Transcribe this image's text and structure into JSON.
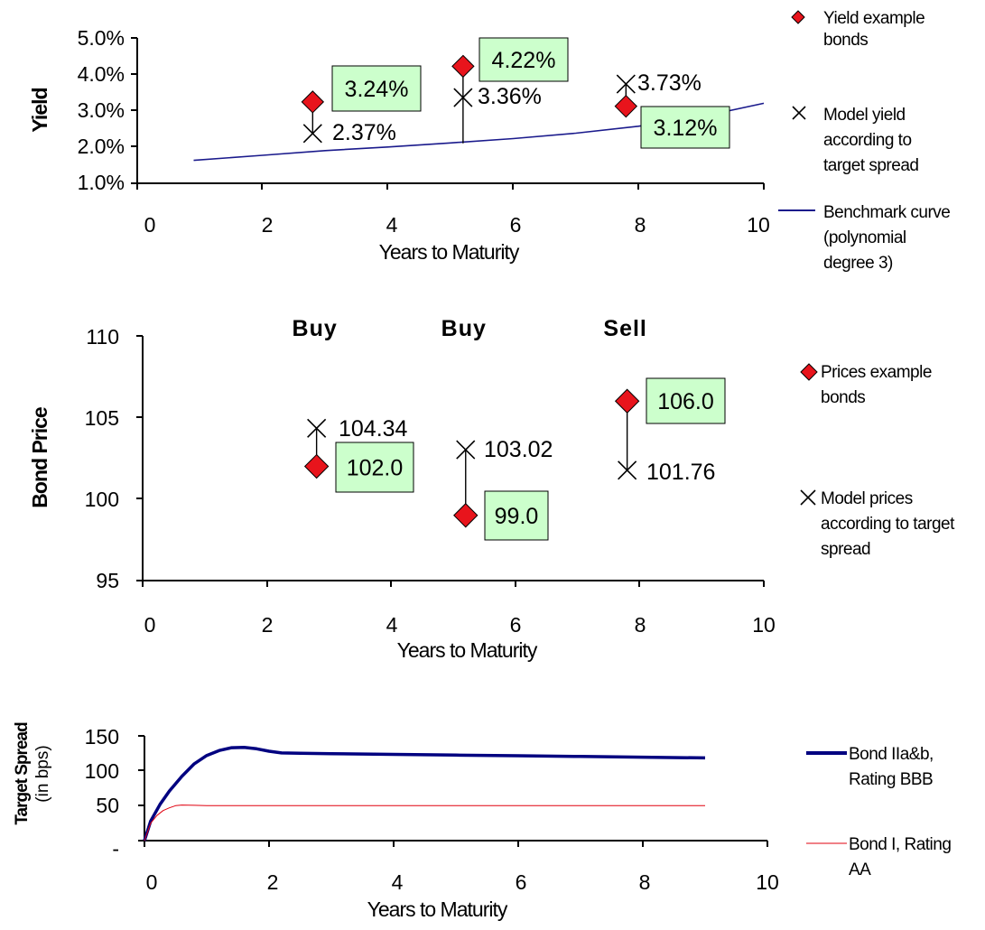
{
  "chart_data": [
    {
      "type": "scatter",
      "ylabel": "Yield",
      "xlabel": "Years to Maturity",
      "xlim": [
        0,
        10
      ],
      "ylim": [
        1.0,
        5.0
      ],
      "x_ticks": [
        "0",
        "2",
        "4",
        "6",
        "8",
        "10"
      ],
      "y_ticks": [
        "1.0%",
        "2.0%",
        "3.0%",
        "4.0%",
        "5.0%"
      ],
      "series": [
        {
          "name": "Yield example bonds",
          "marker": "diamond",
          "color": "#e8141c",
          "x": [
            2.8,
            5.2,
            7.8
          ],
          "y": [
            3.24,
            4.22,
            3.12
          ],
          "labels": [
            "3.24%",
            "4.22%",
            "3.12%"
          ]
        },
        {
          "name": "Model yield according to target spread",
          "marker": "x",
          "color": "#000000",
          "x": [
            2.8,
            5.2,
            7.8
          ],
          "y": [
            2.37,
            3.36,
            3.73
          ],
          "labels": [
            "2.37%",
            "3.36%",
            "3.73%"
          ]
        },
        {
          "name": "Benchmark curve (polynomial degree 3)",
          "marker": "line",
          "color": "#1a1a8c",
          "x": [
            0.9,
            2,
            3,
            4,
            5,
            6,
            7,
            8,
            9,
            10
          ],
          "y": [
            1.63,
            1.77,
            1.9,
            2.0,
            2.11,
            2.23,
            2.38,
            2.57,
            2.83,
            3.2
          ]
        }
      ],
      "legend": [
        {
          "lines": [
            "Yield example",
            "bonds"
          ]
        },
        {
          "lines": [
            "Model yield",
            "according to",
            "target spread"
          ]
        },
        {
          "lines": [
            "Benchmark curve",
            "(polynomial",
            "degree 3)"
          ]
        }
      ],
      "legend_position": "right",
      "label_fill": "#ccffcc"
    },
    {
      "type": "scatter",
      "ylabel": "Bond Price",
      "xlabel": "Years to Maturity",
      "xlim": [
        0,
        10
      ],
      "ylim": [
        95,
        110
      ],
      "x_ticks": [
        "0",
        "2",
        "4",
        "6",
        "8",
        "10"
      ],
      "y_ticks": [
        "95",
        "100",
        "105",
        "110"
      ],
      "annotations": [
        {
          "text": "Buy",
          "x": 2.8
        },
        {
          "text": "Buy",
          "x": 5.2
        },
        {
          "text": "Sell",
          "x": 7.8
        }
      ],
      "series": [
        {
          "name": "Prices example bonds",
          "marker": "diamond",
          "color": "#e8141c",
          "x": [
            2.8,
            5.2,
            7.8
          ],
          "y": [
            102.0,
            99.0,
            106.0
          ],
          "labels": [
            "102.0",
            "99.0",
            "106.0"
          ]
        },
        {
          "name": "Model prices according to target spread",
          "marker": "x",
          "color": "#000000",
          "x": [
            2.8,
            5.2,
            7.8
          ],
          "y": [
            104.34,
            103.02,
            101.76
          ],
          "labels": [
            "104.34",
            "103.02",
            "101.76"
          ]
        }
      ],
      "legend": [
        {
          "lines": [
            "Prices example",
            "bonds"
          ]
        },
        {
          "lines": [
            "Model prices",
            "according to target",
            "spread"
          ]
        }
      ],
      "legend_position": "right",
      "label_fill": "#ccffcc"
    },
    {
      "type": "line",
      "ylabel": "Target Spread",
      "ylabel2": "(in bps)",
      "xlabel": "Years to Maturity",
      "xlim": [
        0,
        10
      ],
      "ylim": [
        0,
        150
      ],
      "x_ticks": [
        "0",
        "2",
        "4",
        "6",
        "8",
        "10"
      ],
      "y_ticks": [
        "-",
        "50",
        "100",
        "150"
      ],
      "series": [
        {
          "name": "Bond IIa&b, Rating BBB",
          "color": "#000080",
          "x": [
            0,
            0.1,
            0.25,
            0.4,
            0.6,
            0.8,
            1.0,
            1.2,
            1.4,
            1.6,
            1.8,
            2.0,
            2.2,
            2.5,
            3,
            4,
            5,
            6,
            7,
            8,
            9
          ],
          "y": [
            0,
            28,
            52,
            71,
            92,
            110,
            122,
            129,
            133,
            133.5,
            131.5,
            128,
            125.5,
            125,
            124.5,
            123.5,
            122.5,
            121.5,
            120.5,
            119.5,
            118.5
          ]
        },
        {
          "name": "Bond I, Rating AA",
          "color": "#e0000f",
          "x": [
            0,
            0.1,
            0.2,
            0.3,
            0.4,
            0.5,
            0.6,
            0.8,
            1.0,
            2,
            3,
            4,
            5,
            6,
            7,
            8,
            9
          ],
          "y": [
            0,
            25,
            36,
            43,
            47,
            50,
            51,
            50.5,
            50,
            50,
            50,
            50,
            50,
            50,
            50,
            50,
            50
          ]
        }
      ],
      "legend": [
        {
          "lines": [
            "Bond IIa&b,",
            "Rating BBB"
          ]
        },
        {
          "lines": [
            "Bond I, Rating",
            "AA"
          ]
        }
      ],
      "legend_position": "right"
    }
  ]
}
